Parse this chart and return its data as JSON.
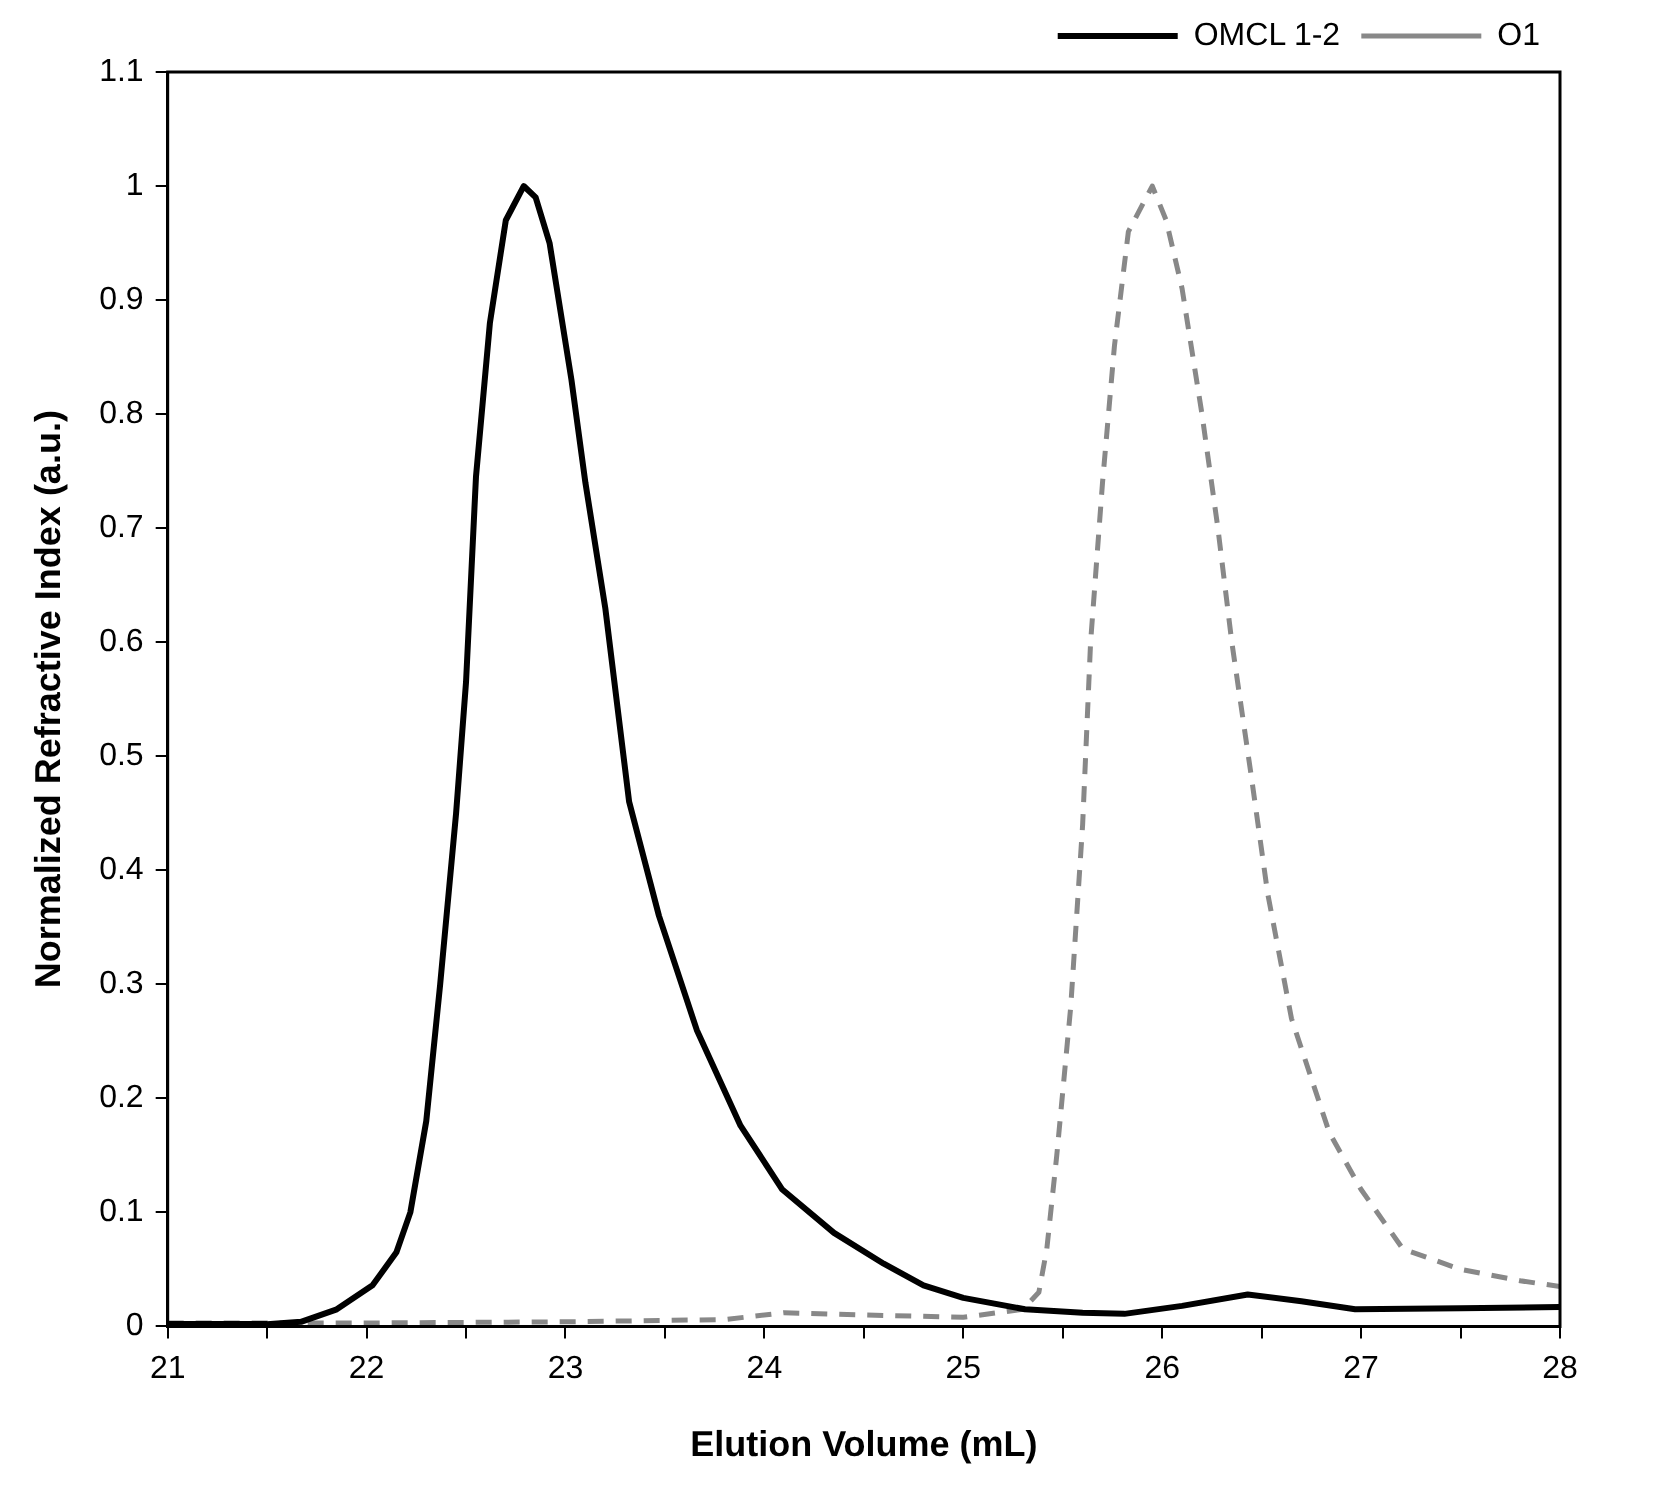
{
  "chart_data": {
    "type": "line",
    "xlabel": "Elution Volume (mL)",
    "ylabel": "Normalized Refractive Index (a.u.)",
    "xlim": [
      21,
      28
    ],
    "xticks": [
      21,
      {
        "value": 21.5,
        "label": null
      },
      22,
      {
        "value": 22.5,
        "label": null
      },
      23,
      {
        "value": 23.5,
        "label": null
      },
      24,
      {
        "value": 24.5,
        "label": null
      },
      25,
      {
        "value": 25.5,
        "label": null
      },
      26,
      {
        "value": 26.5,
        "label": null
      },
      27,
      {
        "value": 27.5,
        "label": null
      },
      28
    ],
    "ylim": [
      0,
      1.1
    ],
    "yticks": [
      0,
      0.1,
      0.2,
      0.3,
      0.4,
      0.5,
      0.6,
      0.7,
      0.8,
      0.9,
      1,
      1.1
    ],
    "grid": false,
    "legend": "top right",
    "marker": "none",
    "series": [
      {
        "name": "OMCL 1-2",
        "color": "#000000",
        "line_style": "solid",
        "x": [
          21,
          21.5,
          21.67,
          21.85,
          22.03,
          22.15,
          22.22,
          22.3,
          22.37,
          22.45,
          22.5,
          22.55,
          22.62,
          22.7,
          22.79,
          22.85,
          22.92,
          23.03,
          23.1,
          23.2,
          23.32,
          23.47,
          23.66,
          23.88,
          24.09,
          24.35,
          24.6,
          24.8,
          25,
          25.31,
          25.6,
          25.81,
          26.1,
          26.43,
          26.7,
          26.97,
          27.5,
          28
        ],
        "values": [
          0.002,
          0.002,
          0.004,
          0.015,
          0.036,
          0.065,
          0.1,
          0.18,
          0.3,
          0.45,
          0.565,
          0.745,
          0.88,
          0.97,
          1,
          0.99,
          0.95,
          0.83,
          0.74,
          0.63,
          0.46,
          0.36,
          0.26,
          0.176,
          0.12,
          0.082,
          0.055,
          0.036,
          0.025,
          0.015,
          0.012,
          0.011,
          0.018,
          0.028,
          0.022,
          0.015,
          0.016,
          0.017
        ]
      },
      {
        "name": "O1",
        "color": "#888888",
        "line_style": "dashed",
        "x": [
          21,
          22,
          23,
          23.8,
          24.1,
          24.5,
          25,
          25.3,
          25.38,
          25.42,
          25.47,
          25.54,
          25.6,
          25.64,
          25.7,
          25.76,
          25.83,
          25.95,
          26.02,
          26.1,
          26.2,
          26.28,
          26.35,
          26.45,
          26.53,
          26.65,
          26.84,
          27,
          27.21,
          27.5,
          27.8,
          28
        ],
        "values": [
          0.003,
          0.003,
          0.004,
          0.006,
          0.012,
          0.01,
          0.008,
          0.015,
          0.03,
          0.068,
          0.15,
          0.28,
          0.44,
          0.6,
          0.74,
          0.86,
          0.96,
          1,
          0.97,
          0.91,
          0.8,
          0.7,
          0.6,
          0.48,
          0.38,
          0.27,
          0.17,
          0.12,
          0.068,
          0.05,
          0.04,
          0.035
        ]
      }
    ]
  }
}
